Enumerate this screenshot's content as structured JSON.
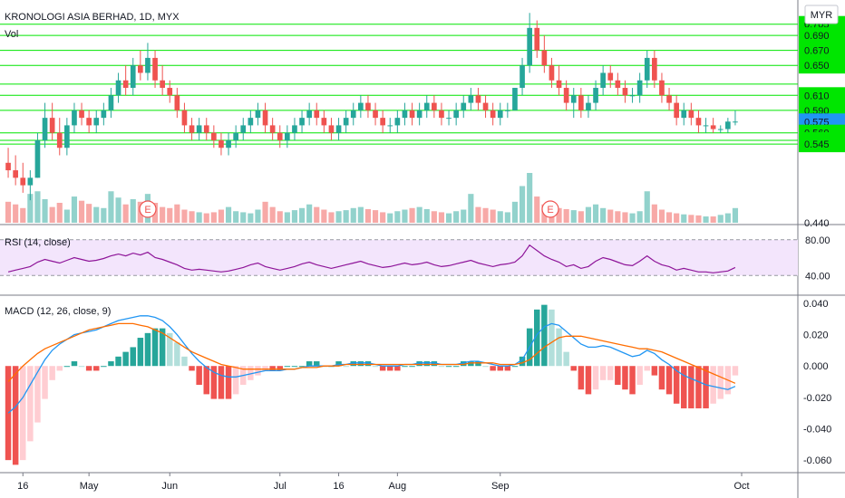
{
  "header": {
    "symbol_title": "KRONOLOGI ASIA BERHAD, 1D, MYX",
    "volume_label": "Vol",
    "currency": "MYR"
  },
  "indicators": {
    "rsi_label": "RSI (14, close)",
    "macd_label": "MACD (12, 26, close, 9)"
  },
  "colors": {
    "up": "#26a69a",
    "down": "#ef5350",
    "level_line": "#00e600",
    "price_tag": "#2962ff",
    "rsi_line": "#8e1599",
    "rsi_band": "#f3e5fc",
    "macd_line": "#2196f3",
    "signal_line": "#ff6d00"
  },
  "chart_data": [
    {
      "type": "candlestick",
      "title": "KRONOLOGI ASIA BERHAD, 1D, MYX",
      "x_ticks": [
        "16",
        "May",
        "Jun",
        "Jul",
        "16",
        "Aug",
        "Sep",
        "Oct"
      ],
      "price_axis_labels": [
        "0.705",
        "0.690",
        "0.670",
        "0.650",
        "0.610",
        "0.590",
        "0.575",
        "0.560",
        "0.550",
        "0.545",
        "0.440"
      ],
      "last_price": "0.575",
      "support_resistance_levels": [
        0.705,
        0.69,
        0.67,
        0.65,
        0.625,
        0.61,
        0.59,
        0.56,
        0.55,
        0.545
      ],
      "earnings_markers": [
        "E",
        "E"
      ],
      "ohlc": [
        [
          0.52,
          0.54,
          0.5,
          0.51
        ],
        [
          0.51,
          0.53,
          0.49,
          0.5
        ],
        [
          0.5,
          0.52,
          0.48,
          0.49
        ],
        [
          0.49,
          0.51,
          0.47,
          0.5
        ],
        [
          0.5,
          0.56,
          0.5,
          0.55
        ],
        [
          0.55,
          0.6,
          0.54,
          0.58
        ],
        [
          0.58,
          0.6,
          0.55,
          0.56
        ],
        [
          0.56,
          0.58,
          0.53,
          0.54
        ],
        [
          0.54,
          0.58,
          0.53,
          0.57
        ],
        [
          0.57,
          0.6,
          0.56,
          0.59
        ],
        [
          0.59,
          0.6,
          0.57,
          0.58
        ],
        [
          0.58,
          0.59,
          0.56,
          0.57
        ],
        [
          0.57,
          0.59,
          0.56,
          0.58
        ],
        [
          0.58,
          0.6,
          0.57,
          0.59
        ],
        [
          0.59,
          0.62,
          0.58,
          0.61
        ],
        [
          0.61,
          0.64,
          0.6,
          0.63
        ],
        [
          0.63,
          0.65,
          0.61,
          0.62
        ],
        [
          0.62,
          0.66,
          0.61,
          0.65
        ],
        [
          0.65,
          0.67,
          0.63,
          0.64
        ],
        [
          0.64,
          0.68,
          0.63,
          0.66
        ],
        [
          0.66,
          0.67,
          0.62,
          0.63
        ],
        [
          0.63,
          0.65,
          0.61,
          0.62
        ],
        [
          0.62,
          0.63,
          0.6,
          0.61
        ],
        [
          0.61,
          0.62,
          0.58,
          0.59
        ],
        [
          0.59,
          0.6,
          0.56,
          0.57
        ],
        [
          0.57,
          0.58,
          0.55,
          0.56
        ],
        [
          0.56,
          0.58,
          0.55,
          0.57
        ],
        [
          0.57,
          0.58,
          0.55,
          0.56
        ],
        [
          0.56,
          0.57,
          0.54,
          0.55
        ],
        [
          0.55,
          0.56,
          0.53,
          0.54
        ],
        [
          0.54,
          0.56,
          0.53,
          0.55
        ],
        [
          0.55,
          0.57,
          0.54,
          0.56
        ],
        [
          0.56,
          0.58,
          0.55,
          0.57
        ],
        [
          0.57,
          0.59,
          0.56,
          0.58
        ],
        [
          0.58,
          0.6,
          0.57,
          0.59
        ],
        [
          0.59,
          0.6,
          0.56,
          0.57
        ],
        [
          0.57,
          0.58,
          0.55,
          0.56
        ],
        [
          0.56,
          0.57,
          0.54,
          0.55
        ],
        [
          0.55,
          0.57,
          0.54,
          0.56
        ],
        [
          0.56,
          0.58,
          0.55,
          0.57
        ],
        [
          0.57,
          0.59,
          0.56,
          0.58
        ],
        [
          0.58,
          0.6,
          0.57,
          0.59
        ],
        [
          0.59,
          0.6,
          0.57,
          0.58
        ],
        [
          0.58,
          0.59,
          0.56,
          0.57
        ],
        [
          0.57,
          0.58,
          0.55,
          0.56
        ],
        [
          0.56,
          0.58,
          0.55,
          0.57
        ],
        [
          0.57,
          0.59,
          0.56,
          0.58
        ],
        [
          0.58,
          0.6,
          0.57,
          0.59
        ],
        [
          0.59,
          0.61,
          0.58,
          0.6
        ],
        [
          0.6,
          0.61,
          0.58,
          0.59
        ],
        [
          0.59,
          0.6,
          0.57,
          0.58
        ],
        [
          0.58,
          0.59,
          0.56,
          0.57
        ],
        [
          0.57,
          0.58,
          0.56,
          0.57
        ],
        [
          0.57,
          0.59,
          0.56,
          0.58
        ],
        [
          0.58,
          0.6,
          0.57,
          0.59
        ],
        [
          0.59,
          0.6,
          0.57,
          0.58
        ],
        [
          0.58,
          0.6,
          0.57,
          0.59
        ],
        [
          0.59,
          0.61,
          0.58,
          0.6
        ],
        [
          0.6,
          0.61,
          0.58,
          0.59
        ],
        [
          0.59,
          0.6,
          0.57,
          0.58
        ],
        [
          0.58,
          0.59,
          0.57,
          0.58
        ],
        [
          0.58,
          0.6,
          0.57,
          0.59
        ],
        [
          0.59,
          0.61,
          0.58,
          0.6
        ],
        [
          0.6,
          0.62,
          0.59,
          0.61
        ],
        [
          0.61,
          0.62,
          0.59,
          0.6
        ],
        [
          0.6,
          0.61,
          0.58,
          0.59
        ],
        [
          0.59,
          0.6,
          0.57,
          0.58
        ],
        [
          0.58,
          0.6,
          0.57,
          0.59
        ],
        [
          0.59,
          0.6,
          0.58,
          0.59
        ],
        [
          0.59,
          0.62,
          0.59,
          0.62
        ],
        [
          0.62,
          0.66,
          0.61,
          0.65
        ],
        [
          0.65,
          0.72,
          0.64,
          0.7
        ],
        [
          0.7,
          0.71,
          0.66,
          0.67
        ],
        [
          0.67,
          0.69,
          0.64,
          0.65
        ],
        [
          0.65,
          0.66,
          0.62,
          0.63
        ],
        [
          0.63,
          0.65,
          0.61,
          0.62
        ],
        [
          0.62,
          0.63,
          0.59,
          0.6
        ],
        [
          0.6,
          0.62,
          0.58,
          0.61
        ],
        [
          0.61,
          0.62,
          0.58,
          0.59
        ],
        [
          0.59,
          0.61,
          0.58,
          0.6
        ],
        [
          0.6,
          0.63,
          0.59,
          0.62
        ],
        [
          0.62,
          0.65,
          0.61,
          0.64
        ],
        [
          0.64,
          0.65,
          0.62,
          0.63
        ],
        [
          0.63,
          0.64,
          0.61,
          0.62
        ],
        [
          0.62,
          0.63,
          0.6,
          0.61
        ],
        [
          0.61,
          0.62,
          0.6,
          0.61
        ],
        [
          0.61,
          0.64,
          0.6,
          0.63
        ],
        [
          0.63,
          0.67,
          0.62,
          0.66
        ],
        [
          0.66,
          0.67,
          0.62,
          0.63
        ],
        [
          0.63,
          0.64,
          0.6,
          0.61
        ],
        [
          0.61,
          0.62,
          0.59,
          0.6
        ],
        [
          0.6,
          0.61,
          0.57,
          0.58
        ],
        [
          0.58,
          0.6,
          0.57,
          0.59
        ],
        [
          0.59,
          0.6,
          0.57,
          0.58
        ],
        [
          0.58,
          0.59,
          0.56,
          0.57
        ],
        [
          0.57,
          0.58,
          0.56,
          0.57
        ],
        [
          0.57,
          0.58,
          0.56,
          0.565
        ],
        [
          0.565,
          0.57,
          0.56,
          0.565
        ],
        [
          0.565,
          0.58,
          0.56,
          0.575
        ],
        [
          0.575,
          0.59,
          0.57,
          0.575
        ]
      ],
      "volume": [
        40,
        35,
        28,
        55,
        60,
        45,
        30,
        38,
        25,
        50,
        42,
        36,
        30,
        28,
        60,
        48,
        35,
        45,
        40,
        55,
        38,
        30,
        28,
        35,
        25,
        22,
        20,
        18,
        20,
        25,
        30,
        22,
        20,
        18,
        25,
        40,
        30,
        22,
        20,
        24,
        28,
        35,
        30,
        25,
        20,
        22,
        24,
        28,
        30,
        26,
        24,
        20,
        18,
        22,
        25,
        28,
        30,
        26,
        22,
        20,
        18,
        22,
        25,
        55,
        30,
        28,
        25,
        22,
        20,
        40,
        70,
        95,
        50,
        35,
        30,
        28,
        26,
        24,
        22,
        30,
        35,
        28,
        25,
        22,
        20,
        18,
        22,
        60,
        35,
        25,
        20,
        18,
        16,
        15,
        14,
        12,
        12,
        15,
        18,
        28
      ],
      "rsi": {
        "levels": [
          80,
          40
        ],
        "axis_labels": [
          "80.00",
          "40.00"
        ],
        "values": [
          44,
          46,
          48,
          50,
          55,
          58,
          56,
          54,
          57,
          60,
          58,
          56,
          57,
          59,
          62,
          64,
          62,
          65,
          63,
          66,
          60,
          58,
          55,
          52,
          48,
          46,
          47,
          46,
          45,
          44,
          45,
          47,
          49,
          52,
          54,
          50,
          48,
          46,
          48,
          50,
          53,
          55,
          52,
          50,
          48,
          50,
          52,
          54,
          56,
          53,
          51,
          49,
          50,
          52,
          54,
          52,
          53,
          55,
          52,
          50,
          51,
          53,
          55,
          57,
          54,
          52,
          50,
          52,
          53,
          55,
          62,
          74,
          68,
          62,
          58,
          55,
          50,
          52,
          48,
          50,
          56,
          60,
          58,
          55,
          52,
          51,
          56,
          62,
          56,
          52,
          50,
          46,
          48,
          46,
          44,
          44,
          43,
          44,
          45,
          49
        ]
      },
      "macd": {
        "axis_labels": [
          "0.040",
          "0.020",
          "0.000",
          "-0.020",
          "-0.040",
          "-0.060"
        ],
        "macd": [
          -0.03,
          -0.026,
          -0.02,
          -0.012,
          -0.004,
          0.004,
          0.01,
          0.014,
          0.017,
          0.02,
          0.021,
          0.022,
          0.023,
          0.025,
          0.027,
          0.029,
          0.03,
          0.031,
          0.032,
          0.032,
          0.031,
          0.029,
          0.025,
          0.02,
          0.014,
          0.008,
          0.003,
          -0.001,
          -0.004,
          -0.006,
          -0.007,
          -0.007,
          -0.006,
          -0.005,
          -0.004,
          -0.003,
          -0.003,
          -0.003,
          -0.002,
          -0.002,
          -0.001,
          0,
          0,
          0,
          0,
          0.001,
          0.001,
          0.002,
          0.002,
          0.002,
          0.001,
          0,
          0,
          0,
          0.001,
          0.001,
          0.002,
          0.002,
          0.002,
          0.001,
          0.001,
          0.001,
          0.002,
          0.003,
          0.003,
          0.002,
          0.001,
          0,
          0,
          0.001,
          0.004,
          0.012,
          0.02,
          0.025,
          0.027,
          0.026,
          0.022,
          0.018,
          0.014,
          0.012,
          0.012,
          0.013,
          0.012,
          0.01,
          0.008,
          0.006,
          0.007,
          0.01,
          0.008,
          0.004,
          0.001,
          -0.003,
          -0.006,
          -0.008,
          -0.01,
          -0.012,
          -0.013,
          -0.014,
          -0.015,
          -0.013
        ],
        "signal": [
          -0.01,
          -0.005,
          0,
          0.004,
          0.008,
          0.011,
          0.013,
          0.015,
          0.017,
          0.019,
          0.021,
          0.023,
          0.024,
          0.025,
          0.026,
          0.027,
          0.027,
          0.027,
          0.026,
          0.025,
          0.023,
          0.021,
          0.018,
          0.015,
          0.012,
          0.009,
          0.007,
          0.005,
          0.003,
          0.001,
          0,
          -0.001,
          -0.002,
          -0.002,
          -0.002,
          -0.002,
          -0.002,
          -0.002,
          -0.002,
          -0.002,
          -0.001,
          -0.001,
          -0.001,
          0,
          0,
          0,
          0.001,
          0.001,
          0.001,
          0.001,
          0.001,
          0.001,
          0.001,
          0.001,
          0.001,
          0.001,
          0.001,
          0.001,
          0.001,
          0.001,
          0.001,
          0.001,
          0.001,
          0.002,
          0.002,
          0.002,
          0.002,
          0.001,
          0.001,
          0.001,
          0.002,
          0.004,
          0.008,
          0.012,
          0.015,
          0.018,
          0.019,
          0.019,
          0.019,
          0.018,
          0.017,
          0.016,
          0.015,
          0.014,
          0.013,
          0.012,
          0.011,
          0.011,
          0.01,
          0.009,
          0.007,
          0.005,
          0.003,
          0.001,
          -0.001,
          -0.003,
          -0.005,
          -0.007,
          -0.009,
          -0.011
        ]
      }
    }
  ]
}
